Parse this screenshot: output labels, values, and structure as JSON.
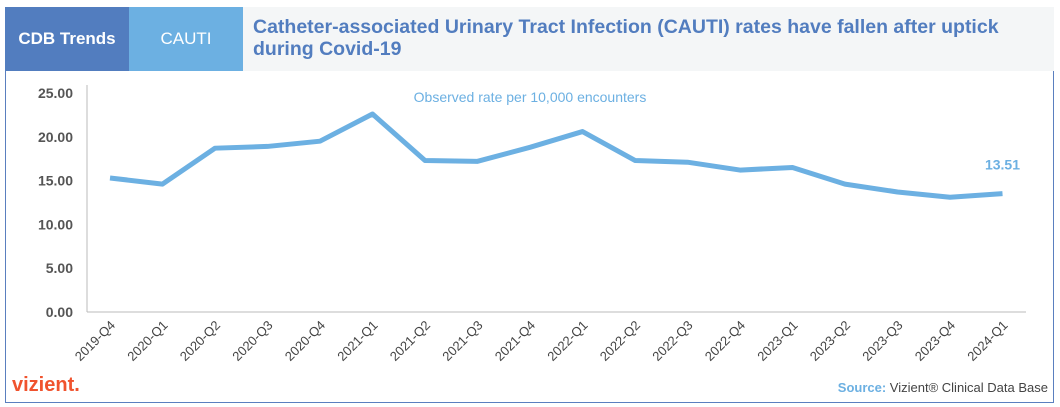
{
  "header": {
    "tab_trends": "CDB Trends",
    "tab_metric": "CAUTI",
    "title": "Catheter-associated Urinary Tract Infection (CAUTI) rates have fallen after uptick during Covid-19"
  },
  "chart_data": {
    "type": "line",
    "categories": [
      "2019-Q4",
      "2020-Q1",
      "2020-Q2",
      "2020-Q3",
      "2020-Q4",
      "2021-Q1",
      "2021-Q2",
      "2021-Q3",
      "2021-Q4",
      "2022-Q1",
      "2022-Q2",
      "2022-Q3",
      "2022-Q4",
      "2023-Q1",
      "2023-Q2",
      "2023-Q3",
      "2023-Q4",
      "2024-Q1"
    ],
    "series": [
      {
        "name": "Observed rate per 10,000 encounters",
        "values": [
          15.3,
          14.6,
          18.7,
          18.9,
          19.5,
          22.6,
          17.3,
          17.2,
          18.8,
          20.6,
          17.3,
          17.1,
          16.2,
          16.5,
          14.6,
          13.7,
          13.1,
          13.51
        ]
      }
    ],
    "yticks": [
      "0.00",
      "5.00",
      "10.00",
      "15.00",
      "20.00",
      "25.00"
    ],
    "ylim": [
      0,
      25
    ],
    "last_label": "13.51",
    "grid": false,
    "color": "#6cb0e2"
  },
  "footer": {
    "logo": "vizient.",
    "source_label": "Source:",
    "source_text": " Vizient® Clinical Data Base"
  }
}
